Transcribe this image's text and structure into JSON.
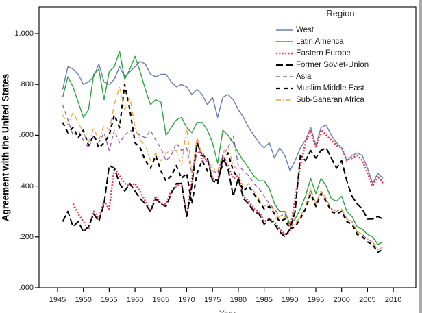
{
  "chart_data": {
    "type": "line",
    "ylabel": "Agreement with the United States",
    "xlabel": "Year",
    "legend_title": "Region",
    "legend_position": "top-right-inside",
    "grid": false,
    "ylim": [
      0.0,
      1.1
    ],
    "xlim": [
      1944,
      2012
    ],
    "y_ticks": [
      {
        "value": 0.0,
        "label": ".000"
      },
      {
        "value": 0.2,
        "label": ".200"
      },
      {
        "value": 0.4,
        "label": ".400"
      },
      {
        "value": 0.6,
        "label": ".600"
      },
      {
        "value": 0.8,
        "label": ".800"
      },
      {
        "value": 1.0,
        "label": "1.000"
      }
    ],
    "x_ticks": [
      1945,
      1950,
      1955,
      1960,
      1965,
      1970,
      1975,
      1980,
      1985,
      1990,
      1995,
      2000,
      2005,
      2010
    ],
    "x": [
      1946,
      1947,
      1948,
      1949,
      1950,
      1951,
      1952,
      1953,
      1954,
      1955,
      1956,
      1957,
      1958,
      1959,
      1960,
      1961,
      1962,
      1963,
      1964,
      1965,
      1966,
      1967,
      1968,
      1969,
      1970,
      1971,
      1972,
      1973,
      1974,
      1975,
      1976,
      1977,
      1978,
      1979,
      1980,
      1981,
      1982,
      1983,
      1984,
      1985,
      1986,
      1987,
      1988,
      1989,
      1990,
      1991,
      1992,
      1993,
      1994,
      1995,
      1996,
      1997,
      1998,
      1999,
      2000,
      2001,
      2002,
      2003,
      2004,
      2005,
      2006,
      2007,
      2008
    ],
    "series": [
      {
        "name": "West",
        "color": "#6a7baf",
        "style": "solid",
        "width": 1.4,
        "dash": "",
        "values": [
          0.78,
          0.87,
          0.86,
          0.84,
          0.8,
          0.81,
          0.83,
          0.88,
          0.81,
          0.8,
          0.82,
          0.87,
          0.83,
          0.85,
          0.87,
          0.89,
          0.88,
          0.84,
          0.83,
          0.84,
          0.84,
          0.81,
          0.79,
          0.8,
          0.79,
          0.76,
          0.78,
          0.76,
          0.72,
          0.75,
          0.67,
          0.75,
          0.76,
          0.74,
          0.7,
          0.67,
          0.63,
          0.6,
          0.57,
          0.55,
          0.57,
          0.51,
          0.55,
          0.52,
          0.46,
          0.5,
          0.55,
          0.58,
          0.63,
          0.56,
          0.63,
          0.64,
          0.6,
          0.57,
          0.55,
          0.5,
          0.52,
          0.53,
          0.52,
          0.47,
          0.41,
          0.45,
          0.43
        ]
      },
      {
        "name": "Latin America",
        "color": "#2ca33c",
        "style": "solid",
        "width": 1.4,
        "dash": "",
        "values": [
          0.75,
          0.83,
          0.79,
          0.73,
          0.67,
          0.7,
          0.84,
          0.86,
          0.74,
          0.85,
          0.87,
          0.93,
          0.82,
          0.86,
          0.91,
          0.85,
          0.78,
          0.72,
          0.74,
          0.73,
          0.6,
          0.63,
          0.66,
          0.67,
          0.63,
          0.61,
          0.65,
          0.65,
          0.62,
          0.57,
          0.49,
          0.62,
          0.6,
          0.57,
          0.53,
          0.5,
          0.47,
          0.44,
          0.42,
          0.42,
          0.39,
          0.33,
          0.3,
          0.3,
          0.25,
          0.27,
          0.31,
          0.36,
          0.43,
          0.37,
          0.43,
          0.4,
          0.35,
          0.34,
          0.36,
          0.3,
          0.28,
          0.24,
          0.23,
          0.21,
          0.2,
          0.17,
          0.18
        ]
      },
      {
        "name": "Eastern Europe",
        "color": "#e23a50",
        "style": "dotted",
        "width": 2.6,
        "dash": "2 2.4",
        "values": [
          null,
          null,
          0.33,
          0.29,
          0.26,
          0.23,
          0.3,
          0.27,
          0.34,
          0.31,
          0.47,
          0.44,
          0.41,
          0.4,
          0.41,
          0.38,
          0.34,
          0.3,
          0.36,
          0.33,
          0.33,
          0.38,
          0.4,
          0.41,
          0.28,
          0.42,
          0.58,
          0.5,
          0.51,
          0.43,
          0.42,
          0.52,
          0.48,
          0.43,
          0.44,
          0.36,
          0.34,
          0.31,
          0.3,
          0.26,
          0.27,
          0.26,
          0.23,
          0.21,
          0.22,
          0.35,
          0.48,
          0.57,
          0.62,
          0.55,
          0.62,
          0.6,
          0.58,
          0.56,
          0.55,
          0.5,
          0.51,
          0.52,
          0.5,
          0.45,
          0.4,
          0.44,
          0.41
        ]
      },
      {
        "name": "Former Soviet-Union",
        "color": "#000000",
        "style": "long-dash",
        "width": 2.0,
        "dash": "10 4",
        "values": [
          0.26,
          0.3,
          0.24,
          0.26,
          0.22,
          0.24,
          0.29,
          0.26,
          0.33,
          0.48,
          0.47,
          0.41,
          0.38,
          0.41,
          0.38,
          0.35,
          0.33,
          0.3,
          0.35,
          0.33,
          0.32,
          0.37,
          0.41,
          0.41,
          0.28,
          0.4,
          0.57,
          0.52,
          0.51,
          0.42,
          0.41,
          0.51,
          0.47,
          0.36,
          0.43,
          0.35,
          0.33,
          0.3,
          0.29,
          0.25,
          0.27,
          0.25,
          0.22,
          0.2,
          0.23,
          0.3,
          0.52,
          0.5,
          0.54,
          0.51,
          0.54,
          0.55,
          0.51,
          0.47,
          0.5,
          0.42,
          0.36,
          0.33,
          0.31,
          0.27,
          0.27,
          0.28,
          0.27
        ]
      },
      {
        "name": "Asia",
        "color": "#8e5ba6",
        "style": "dash",
        "width": 1.3,
        "dash": "6 4",
        "values": [
          0.72,
          0.66,
          0.6,
          0.62,
          0.58,
          0.55,
          0.6,
          0.57,
          0.61,
          0.54,
          0.62,
          0.57,
          0.6,
          0.62,
          0.61,
          0.6,
          0.59,
          0.62,
          0.58,
          0.55,
          0.5,
          0.52,
          0.57,
          0.54,
          0.55,
          0.45,
          0.53,
          0.54,
          0.49,
          0.46,
          0.45,
          0.52,
          0.55,
          0.6,
          0.48,
          0.46,
          0.44,
          0.41,
          0.39,
          0.36,
          0.33,
          0.31,
          0.28,
          0.29,
          0.24,
          0.25,
          0.28,
          0.31,
          0.38,
          0.33,
          0.38,
          0.35,
          0.31,
          0.3,
          0.31,
          0.27,
          0.26,
          0.22,
          0.21,
          0.19,
          0.18,
          0.15,
          0.16
        ]
      },
      {
        "name": "Muslim Middle East",
        "color": "#000000",
        "style": "dash",
        "width": 2.2,
        "dash": "6 5",
        "values": [
          0.65,
          0.61,
          0.63,
          0.59,
          0.62,
          0.56,
          0.6,
          0.55,
          0.57,
          0.6,
          0.68,
          0.63,
          0.8,
          0.7,
          0.57,
          0.55,
          0.5,
          0.47,
          0.52,
          0.46,
          0.42,
          0.44,
          0.48,
          0.43,
          0.45,
          0.33,
          0.45,
          0.5,
          0.46,
          0.43,
          0.42,
          0.49,
          0.53,
          0.46,
          0.43,
          0.38,
          0.4,
          0.37,
          0.34,
          0.31,
          0.32,
          0.29,
          0.26,
          0.27,
          0.23,
          0.24,
          0.27,
          0.31,
          0.37,
          0.32,
          0.37,
          0.34,
          0.3,
          0.29,
          0.3,
          0.26,
          0.25,
          0.21,
          0.2,
          0.18,
          0.17,
          0.14,
          0.15
        ]
      },
      {
        "name": "Sub-Saharan Africa",
        "color": "#eda33f",
        "style": "dash-dot",
        "width": 1.3,
        "dash": "7 3 1.5 3",
        "values": [
          0.68,
          0.64,
          0.69,
          0.65,
          0.61,
          0.57,
          0.63,
          0.58,
          0.64,
          0.62,
          0.72,
          0.79,
          0.7,
          0.75,
          0.63,
          0.58,
          0.56,
          0.5,
          0.53,
          0.5,
          0.53,
          0.54,
          0.54,
          0.48,
          0.63,
          0.45,
          0.59,
          0.52,
          0.5,
          0.47,
          0.46,
          0.53,
          0.56,
          0.48,
          0.46,
          0.39,
          0.41,
          0.38,
          0.35,
          0.32,
          0.33,
          0.3,
          0.27,
          0.28,
          0.24,
          0.25,
          0.28,
          0.32,
          0.39,
          0.33,
          0.38,
          0.35,
          0.31,
          0.3,
          0.31,
          0.27,
          0.26,
          0.22,
          0.21,
          0.19,
          0.18,
          0.15,
          0.16
        ]
      }
    ]
  }
}
